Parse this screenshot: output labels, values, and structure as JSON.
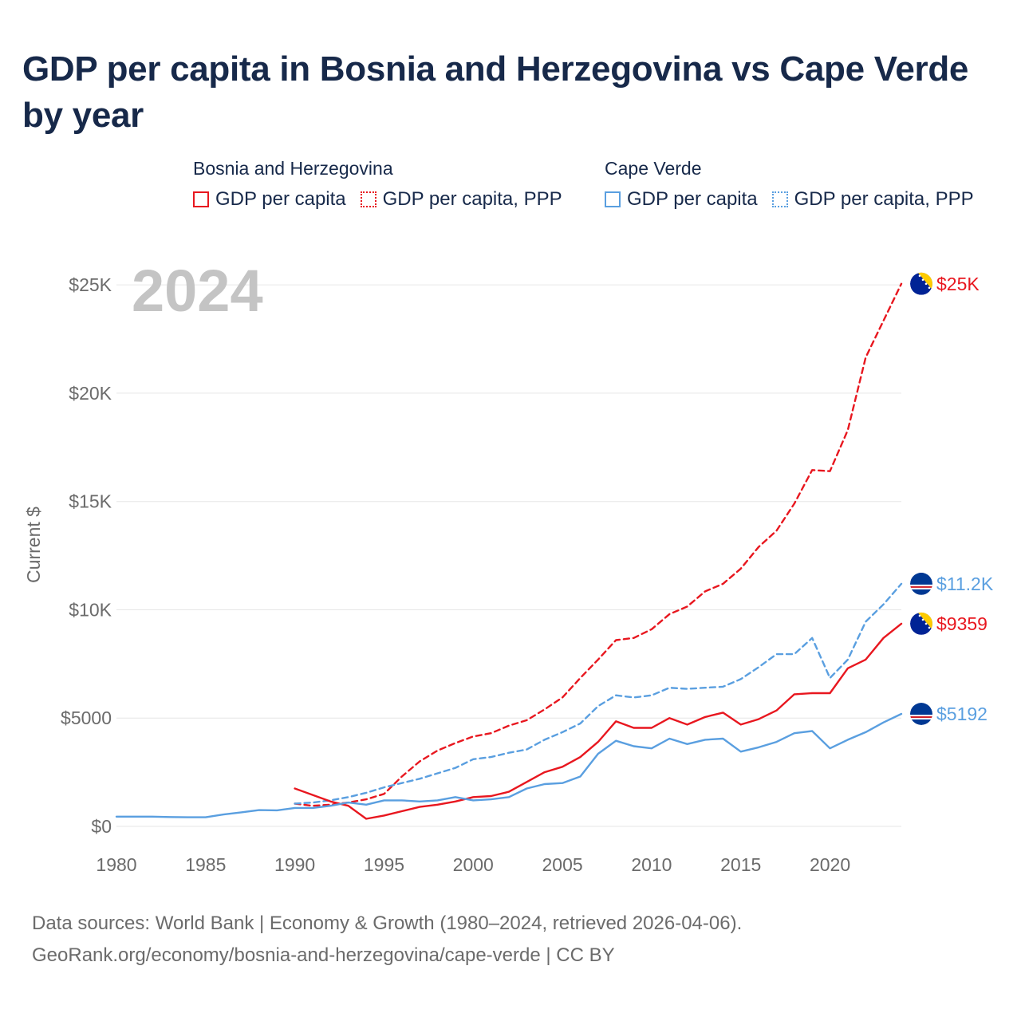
{
  "title": "GDP per capita in Bosnia and Herzegovina vs Cape Verde by year",
  "year_label": "2024",
  "legend": {
    "groups": [
      {
        "name": "Bosnia and Herzegovina",
        "color": "#e8171f",
        "items": [
          {
            "label": "GDP per capita",
            "style": "solid"
          },
          {
            "label": "GDP per capita, PPP",
            "style": "dotted"
          }
        ]
      },
      {
        "name": "Cape Verde",
        "color": "#5a9fe0",
        "items": [
          {
            "label": "GDP per capita",
            "style": "solid"
          },
          {
            "label": "GDP per capita, PPP",
            "style": "dotted"
          }
        ]
      }
    ]
  },
  "source": {
    "line1": "Data sources: World Bank | Economy & Growth (1980–2024, retrieved 2026-04-06).",
    "line2": "GeoRank.org/economy/bosnia-and-herzegovina/cape-verde | CC BY"
  },
  "chart_data": {
    "type": "line",
    "title": "GDP per capita in Bosnia and Herzegovina vs Cape Verde by year",
    "ylabel": "Current $",
    "xlabel": "",
    "xlim": [
      1980,
      2024
    ],
    "ylim": [
      0,
      26000
    ],
    "x_ticks": [
      1980,
      1985,
      1990,
      1995,
      2000,
      2005,
      2010,
      2015,
      2020
    ],
    "y_ticks": [
      {
        "value": 0,
        "label": "$0"
      },
      {
        "value": 5000,
        "label": "$5000"
      },
      {
        "value": 10000,
        "label": "$10K"
      },
      {
        "value": 15000,
        "label": "$15K"
      },
      {
        "value": 20000,
        "label": "$20K"
      },
      {
        "value": 25000,
        "label": "$25K"
      }
    ],
    "grid": true,
    "series": [
      {
        "name": "Bosnia and Herzegovina GDP per capita, PPP",
        "country": "Bosnia and Herzegovina",
        "dashed": true,
        "color": "#e8171f",
        "end_label": "$25K",
        "flag": "ba",
        "x": [
          1990,
          1991,
          1992,
          1993,
          1994,
          1995,
          1996,
          1997,
          1998,
          1999,
          2000,
          2001,
          2002,
          2003,
          2004,
          2005,
          2006,
          2007,
          2008,
          2009,
          2010,
          2011,
          2012,
          2013,
          2014,
          2015,
          2016,
          2017,
          2018,
          2019,
          2020,
          2021,
          2022,
          2023,
          2024
        ],
        "values": [
          1050,
          950,
          1000,
          1100,
          1250,
          1500,
          2300,
          3000,
          3500,
          3850,
          4150,
          4300,
          4650,
          4900,
          5400,
          5950,
          6850,
          7700,
          8600,
          8700,
          9100,
          9800,
          10150,
          10850,
          11200,
          11900,
          12900,
          13650,
          14900,
          16450,
          16400,
          18300,
          21650,
          23350,
          25050
        ]
      },
      {
        "name": "Cape Verde GDP per capita, PPP",
        "country": "Cape Verde",
        "dashed": true,
        "color": "#5a9fe0",
        "end_label": "$11.2K",
        "flag": "cv",
        "x": [
          1990,
          1991,
          1992,
          1993,
          1994,
          1995,
          1996,
          1997,
          1998,
          1999,
          2000,
          2001,
          2002,
          2003,
          2004,
          2005,
          2006,
          2007,
          2008,
          2009,
          2010,
          2011,
          2012,
          2013,
          2014,
          2015,
          2016,
          2017,
          2018,
          2019,
          2020,
          2021,
          2022,
          2023,
          2024
        ],
        "values": [
          1050,
          1100,
          1200,
          1350,
          1550,
          1800,
          2000,
          2200,
          2450,
          2700,
          3100,
          3200,
          3400,
          3550,
          4000,
          4350,
          4750,
          5550,
          6050,
          5950,
          6050,
          6400,
          6350,
          6400,
          6450,
          6800,
          7350,
          7950,
          7950,
          8700,
          6850,
          7700,
          9450,
          10250,
          11200
        ]
      },
      {
        "name": "Bosnia and Herzegovina GDP per capita",
        "country": "Bosnia and Herzegovina",
        "dashed": false,
        "color": "#e8171f",
        "end_label": "$9359",
        "flag": "ba",
        "x": [
          1990,
          1991,
          1992,
          1993,
          1994,
          1995,
          1996,
          1997,
          1998,
          1999,
          2000,
          2001,
          2002,
          2003,
          2004,
          2005,
          2006,
          2007,
          2008,
          2009,
          2010,
          2011,
          2012,
          2013,
          2014,
          2015,
          2016,
          2017,
          2018,
          2019,
          2020,
          2021,
          2022,
          2023,
          2024
        ],
        "values": [
          1750,
          1450,
          1150,
          950,
          350,
          500,
          700,
          900,
          1000,
          1150,
          1350,
          1400,
          1600,
          2050,
          2500,
          2750,
          3200,
          3900,
          4850,
          4550,
          4550,
          5000,
          4700,
          5050,
          5250,
          4700,
          4950,
          5350,
          6100,
          6150,
          6150,
          7300,
          7700,
          8700,
          9359
        ]
      },
      {
        "name": "Cape Verde GDP per capita",
        "country": "Cape Verde",
        "dashed": false,
        "color": "#5a9fe0",
        "end_label": "$5192",
        "flag": "cv",
        "x": [
          1980,
          1981,
          1982,
          1983,
          1984,
          1985,
          1986,
          1987,
          1988,
          1989,
          1990,
          1991,
          1992,
          1993,
          1994,
          1995,
          1996,
          1997,
          1998,
          1999,
          2000,
          2001,
          2002,
          2003,
          2004,
          2005,
          2006,
          2007,
          2008,
          2009,
          2010,
          2011,
          2012,
          2013,
          2014,
          2015,
          2016,
          2017,
          2018,
          2019,
          2020,
          2021,
          2022,
          2023,
          2024
        ],
        "values": [
          450,
          450,
          450,
          430,
          420,
          420,
          550,
          650,
          750,
          740,
          850,
          850,
          950,
          1100,
          1000,
          1200,
          1200,
          1150,
          1200,
          1350,
          1200,
          1250,
          1350,
          1750,
          1950,
          2000,
          2300,
          3350,
          3950,
          3700,
          3600,
          4050,
          3800,
          4000,
          4050,
          3450,
          3650,
          3900,
          4300,
          4400,
          3600,
          4000,
          4350,
          4800,
          5192
        ]
      }
    ]
  }
}
